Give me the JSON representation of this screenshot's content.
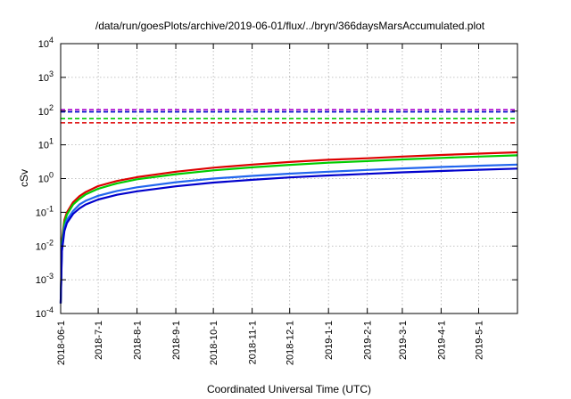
{
  "chart_data": {
    "type": "line",
    "title": "/data/run/goesPlots/archive/2019-06-01/flux/../bryn/366daysMarsAccumulated.plot",
    "xlabel": "Coordinated Universal Time (UTC)",
    "ylabel": "cSv",
    "yscale": "log",
    "ylim": [
      0.0001,
      10000
    ],
    "xlim": [
      "2018-06-01",
      "2019-06-01"
    ],
    "grid": true,
    "y_ticks": [
      {
        "value": 0.0001,
        "base": "10",
        "exp": "-4"
      },
      {
        "value": 0.001,
        "base": "10",
        "exp": "-3"
      },
      {
        "value": 0.01,
        "base": "10",
        "exp": "-2"
      },
      {
        "value": 0.1,
        "base": "10",
        "exp": "-1"
      },
      {
        "value": 1,
        "base": "10",
        "exp": "0"
      },
      {
        "value": 10,
        "base": "10",
        "exp": "1"
      },
      {
        "value": 100,
        "base": "10",
        "exp": "2"
      },
      {
        "value": 1000,
        "base": "10",
        "exp": "3"
      },
      {
        "value": 10000,
        "base": "10",
        "exp": "4"
      }
    ],
    "x_ticks": [
      "2018-06-1",
      "2018-7-1",
      "2018-8-1",
      "2018-9-1",
      "2018-10-1",
      "2018-11-1",
      "2018-12-1",
      "2019-1-1",
      "2019-2-1",
      "2019-3-1",
      "2019-4-1",
      "2019-5-1"
    ],
    "x_tick_dates": [
      "2018-06-01",
      "2018-07-01",
      "2018-08-01",
      "2018-09-01",
      "2018-10-01",
      "2018-11-01",
      "2018-12-01",
      "2019-01-01",
      "2019-02-01",
      "2019-03-01",
      "2019-04-01",
      "2019-05-01"
    ],
    "x": [
      "2018-06-01",
      "2018-06-02",
      "2018-06-04",
      "2018-06-06",
      "2018-06-11",
      "2018-06-16",
      "2018-06-21",
      "2018-07-01",
      "2018-07-16",
      "2018-08-01",
      "2018-09-01",
      "2018-10-01",
      "2018-11-01",
      "2018-12-01",
      "2019-01-01",
      "2019-02-01",
      "2019-03-01",
      "2019-04-01",
      "2019-05-01",
      "2019-06-01"
    ],
    "series": [
      {
        "color": "#dd0000",
        "values": [
          0.0002,
          0.015,
          0.06,
          0.1,
          0.2,
          0.3,
          0.4,
          0.6,
          0.85,
          1.1,
          1.6,
          2.1,
          2.6,
          3.1,
          3.6,
          4.0,
          4.5,
          5.0,
          5.5,
          6.0
        ]
      },
      {
        "color": "#00cc00",
        "values": [
          0.0002,
          0.012,
          0.05,
          0.085,
          0.17,
          0.25,
          0.34,
          0.5,
          0.72,
          0.95,
          1.35,
          1.75,
          2.15,
          2.55,
          2.95,
          3.3,
          3.7,
          4.1,
          4.5,
          4.9
        ]
      },
      {
        "color": "#2266ee",
        "values": [
          0.0002,
          0.009,
          0.035,
          0.06,
          0.11,
          0.17,
          0.22,
          0.31,
          0.43,
          0.55,
          0.78,
          1.0,
          1.2,
          1.4,
          1.6,
          1.8,
          2.0,
          2.2,
          2.4,
          2.6
        ]
      },
      {
        "color": "#0000cc",
        "values": [
          0.0002,
          0.007,
          0.028,
          0.048,
          0.09,
          0.13,
          0.17,
          0.24,
          0.33,
          0.42,
          0.59,
          0.76,
          0.92,
          1.08,
          1.24,
          1.38,
          1.53,
          1.68,
          1.83,
          1.98
        ]
      }
    ],
    "reference_lines": [
      {
        "value": 110,
        "color": "#aa00cc"
      },
      {
        "value": 95,
        "color": "#0000cc"
      },
      {
        "value": 60,
        "color": "#00cc00"
      },
      {
        "value": 45,
        "color": "#dd0000"
      }
    ]
  }
}
